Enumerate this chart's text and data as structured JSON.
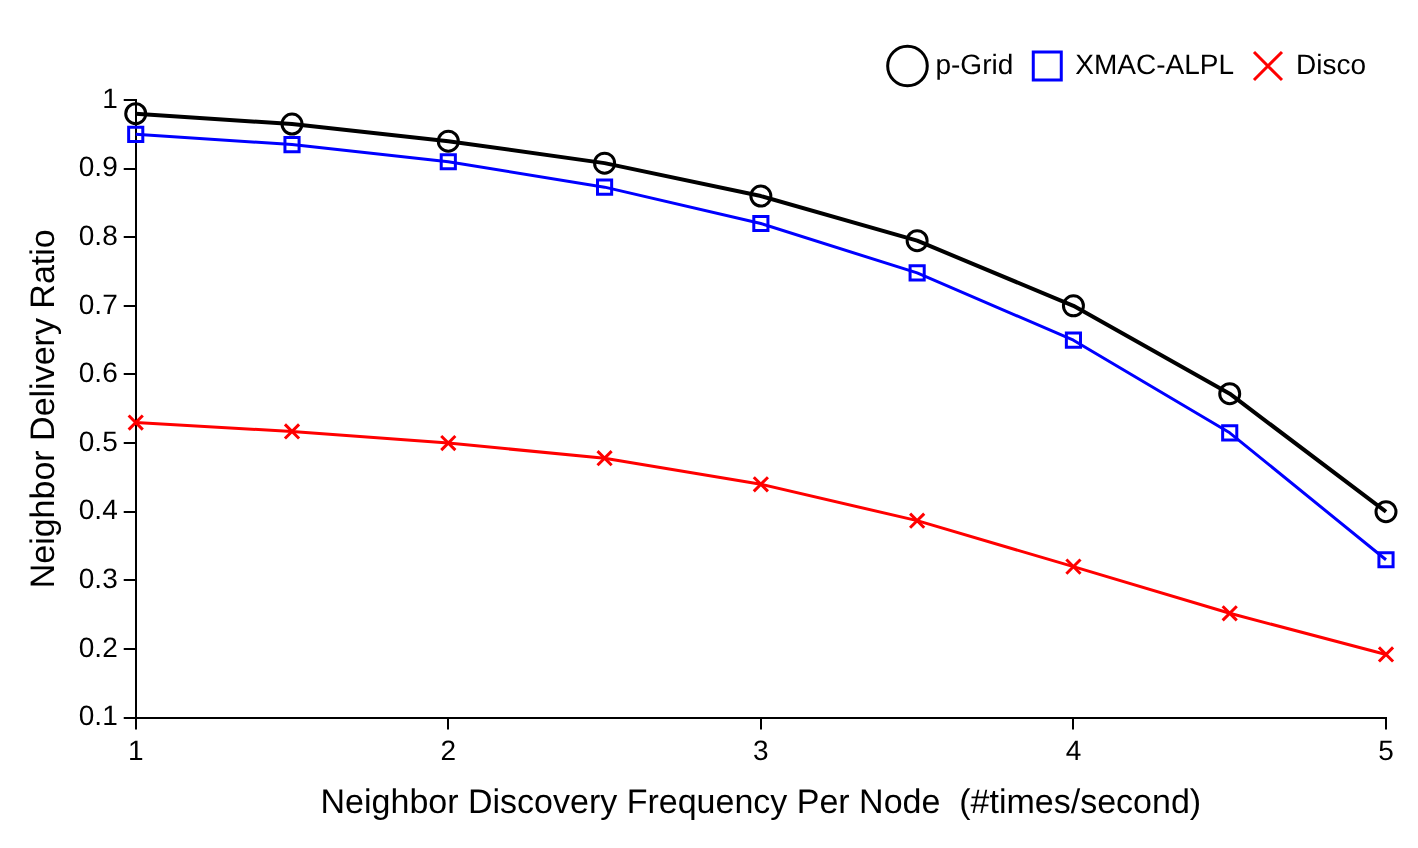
{
  "chart_data": {
    "type": "line",
    "xlabel": "Neighbor Discovery Frequency Per Node  (#times/second)",
    "ylabel": "Neighbor Delivery Ratio",
    "x": [
      1,
      1.5,
      2,
      2.5,
      3,
      3.5,
      4,
      4.5,
      5
    ],
    "series": [
      {
        "name": "p-Grid",
        "color": "#000000",
        "marker": "circle",
        "values": [
          0.98,
          0.965,
          0.94,
          0.908,
          0.86,
          0.795,
          0.7,
          0.572,
          0.4
        ]
      },
      {
        "name": "XMAC-ALPL",
        "color": "#0000ff",
        "marker": "square",
        "values": [
          0.95,
          0.935,
          0.91,
          0.873,
          0.82,
          0.748,
          0.65,
          0.515,
          0.33
        ]
      },
      {
        "name": "Disco",
        "color": "#ff0000",
        "marker": "cross",
        "values": [
          0.53,
          0.517,
          0.5,
          0.478,
          0.44,
          0.387,
          0.32,
          0.252,
          0.192
        ]
      }
    ],
    "xlim": [
      1,
      5
    ],
    "xticks": [
      1,
      2,
      3,
      4,
      5
    ],
    "ylim": [
      0.1,
      1
    ],
    "yticks": [
      0.1,
      0.2,
      0.3,
      0.4,
      0.5,
      0.6,
      0.7,
      0.8,
      0.9,
      1
    ],
    "grid": false,
    "legend": "top right",
    "line_style": "solid"
  }
}
